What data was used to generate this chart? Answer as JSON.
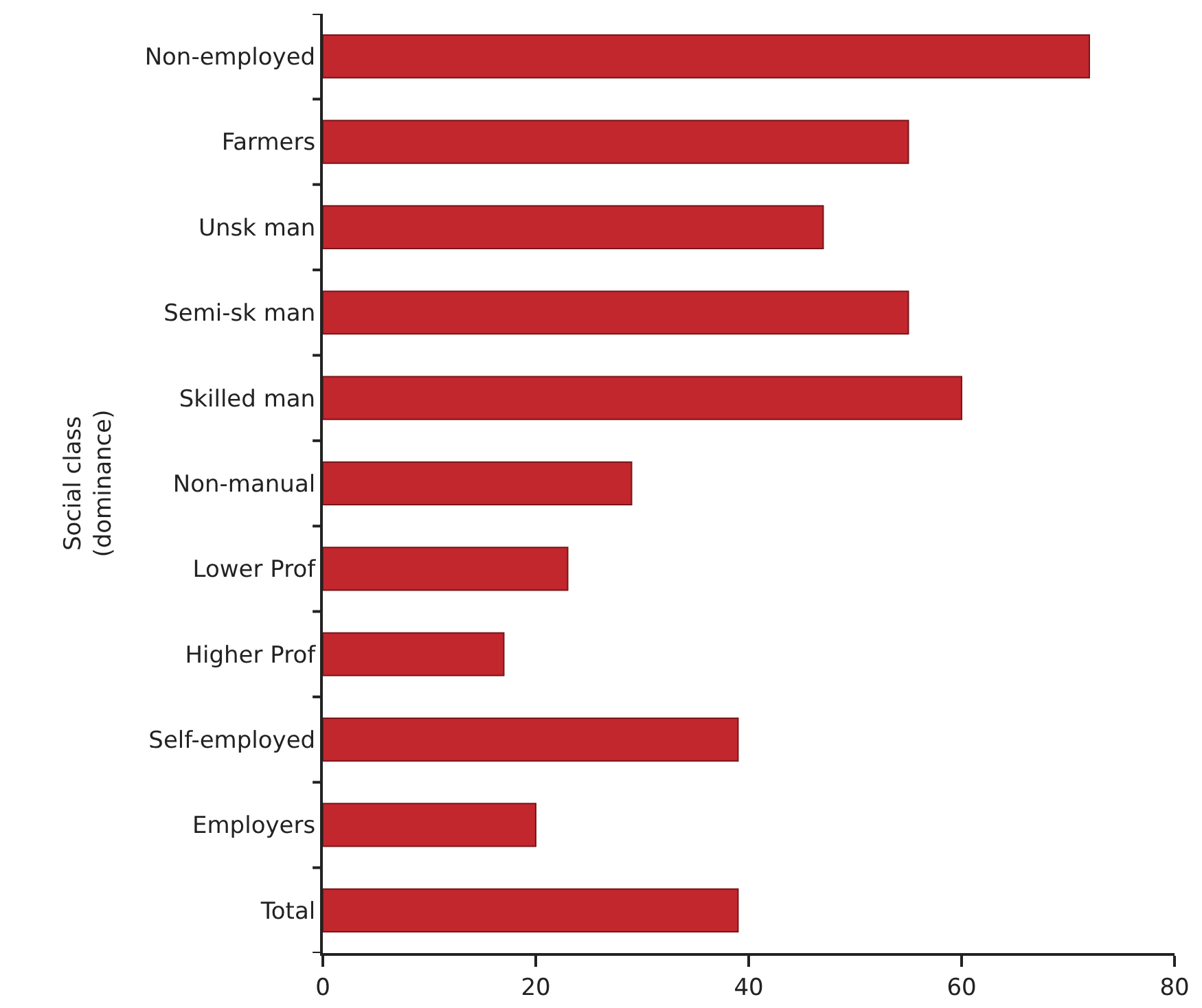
{
  "chart_data": {
    "type": "bar",
    "orientation": "horizontal",
    "ylabel": "Social class\n(dominance)",
    "categories": [
      "Non-employed",
      "Farmers",
      "Unsk man",
      "Semi-sk man",
      "Skilled man",
      "Non-manual",
      "Lower Prof",
      "Higher Prof",
      "Self-employed",
      "Employers",
      "Total"
    ],
    "values": [
      72,
      55,
      47,
      55,
      60,
      29,
      23,
      17,
      39,
      20,
      39
    ],
    "color": "#c1272d",
    "xlim": [
      0,
      80
    ],
    "xticks": [
      0,
      20,
      40,
      60,
      80
    ],
    "grid": false,
    "legend": false
  }
}
